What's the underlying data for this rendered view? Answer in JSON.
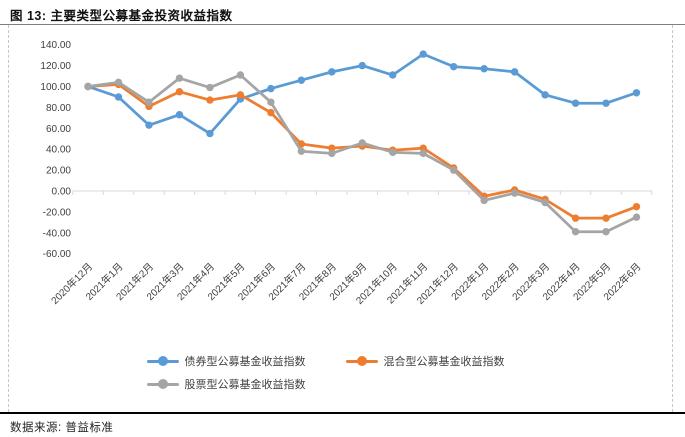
{
  "title": "图 13: 主要类型公募基金投资收益指数",
  "source_note": "数据来源: 普益标准",
  "colors": {
    "bond": "#5B9BD5",
    "hybrid": "#ED7D31",
    "stock": "#A5A5A5",
    "axis_line": "#D9D9D9",
    "tick_text": "#404040",
    "top_rule": "#7f7f7f",
    "bottom_rule": "#000000",
    "side_border_dash": "#c6c6c6"
  },
  "chart_data": {
    "type": "line",
    "title": "图 13: 主要类型公募基金投资收益指数",
    "categories": [
      "2020年12月",
      "2021年1月",
      "2021年2月",
      "2021年3月",
      "2021年4月",
      "2021年5月",
      "2021年6月",
      "2021年7月",
      "2021年8月",
      "2021年9月",
      "2021年10月",
      "2021年11月",
      "2021年12月",
      "2022年1月",
      "2022年2月",
      "2022年3月",
      "2022年4月",
      "2022年5月",
      "2022年6月"
    ],
    "series": [
      {
        "key": "bond",
        "name": "债券型公募基金收益指数",
        "color": "#5B9BD5",
        "values": [
          100,
          90,
          63,
          73,
          55,
          88,
          98,
          106,
          114,
          120,
          111,
          131,
          119,
          117,
          114,
          92,
          84,
          84,
          94
        ]
      },
      {
        "key": "hybrid",
        "name": "混合型公募基金收益指数",
        "color": "#ED7D31",
        "values": [
          100,
          102,
          81,
          95,
          87,
          92,
          75,
          45,
          41,
          43,
          39,
          41,
          22,
          -5,
          1,
          -8,
          -26,
          -26,
          -15
        ]
      },
      {
        "key": "stock",
        "name": "股票型公募基金收益指数",
        "color": "#A5A5A5",
        "values": [
          100,
          104,
          85,
          108,
          99,
          111,
          85,
          38,
          36,
          46,
          37,
          36,
          20,
          -9,
          -2,
          -11,
          -39,
          -39,
          -25
        ]
      }
    ],
    "ylim": [
      -60,
      140
    ],
    "ytick_step": 20,
    "ytick_values": [
      140,
      120,
      100,
      80,
      60,
      40,
      20,
      0,
      -20,
      -40,
      -60
    ],
    "ytick_labels": [
      "140.00",
      "120.00",
      "100.00",
      "80.00",
      "60.00",
      "40.00",
      "20.00",
      "0.00",
      "-20.00",
      "-40.00",
      "-60.00"
    ],
    "grid": false,
    "legend_position": "bottom",
    "x_label_rotation_deg": 45
  }
}
